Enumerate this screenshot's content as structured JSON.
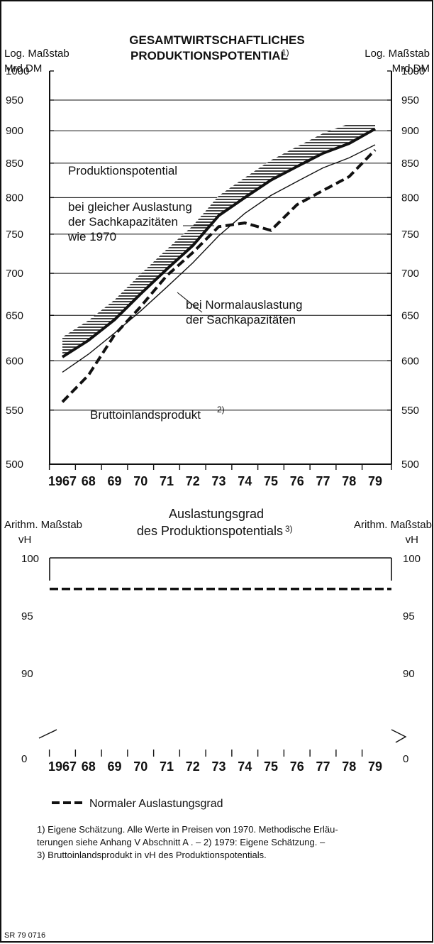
{
  "chart_data": [
    {
      "type": "line",
      "title": "GESAMTWIRTSCHAFTLICHES PRODUKTIONSPOTENTIAL",
      "title_line1": "GESAMTWIRTSCHAFTLICHES",
      "title_line2": "PRODUKTIONSPOTENTIAL",
      "title_footnote_mark": "1)",
      "yaxis_note_left_1": "Log. Maßstab",
      "yaxis_note_left_2": "Mrd DM",
      "yaxis_note_right_1": "Log. Maßstab",
      "yaxis_note_right_2": "Mrd DM",
      "yscale": "log",
      "ylim": [
        500,
        1000
      ],
      "yticks": [
        "1000",
        "950",
        "900",
        "850",
        "800",
        "750",
        "700",
        "650",
        "600",
        "550",
        "500"
      ],
      "ytick_values": [
        1000,
        950,
        900,
        850,
        800,
        750,
        700,
        650,
        600,
        550,
        500
      ],
      "grid": "horizontal",
      "x": [
        1967,
        1968,
        1969,
        1970,
        1971,
        1972,
        1973,
        1974,
        1975,
        1976,
        1977,
        1978,
        1979
      ],
      "xtick_labels": [
        "1967",
        "68",
        "69",
        "70",
        "71",
        "72",
        "73",
        "74",
        "75",
        "76",
        "77",
        "78",
        "79"
      ],
      "series": [
        {
          "key": "potential_1970",
          "values": [
            604,
            622,
            645,
            675,
            705,
            735,
            775,
            800,
            825,
            845,
            865,
            880,
            903
          ],
          "style": "thick-solid-hatched"
        },
        {
          "key": "potential_normal",
          "values": [
            588,
            607,
            630,
            655,
            683,
            713,
            748,
            778,
            803,
            823,
            843,
            858,
            878
          ],
          "style": "thin-solid"
        },
        {
          "key": "bip",
          "values": [
            558,
            585,
            628,
            660,
            697,
            726,
            760,
            765,
            755,
            790,
            810,
            830,
            870
          ],
          "style": "thick-dashed"
        }
      ],
      "annotations": {
        "produktionspotential": "Produktionspotential",
        "gleiche_1": "bei gleicher Auslastung",
        "gleiche_2": "der Sachkapazitäten",
        "gleiche_3": "wie 1970",
        "normal_1": "bei Normalauslastung",
        "normal_2": "der Sachkapazitäten",
        "bip": "Bruttoinlandsprodukt",
        "bip_mark": "2)"
      }
    },
    {
      "type": "line",
      "title": "Auslastungsgrad des Produktionspotentials",
      "title_line1": "Auslastungsgrad",
      "title_line2": "des Produktionspotentials",
      "title_footnote_mark": "3)",
      "yaxis_note_left_1": "Arithm. Maßstab",
      "yaxis_note_left_2": "vH",
      "yaxis_note_right_1": "Arithm. Maßstab",
      "yaxis_note_right_2": "vH",
      "yticks": [
        "100",
        "95",
        "90",
        "0"
      ],
      "ylim": [
        0,
        100
      ],
      "axis_break": true,
      "x": [
        1967,
        1968,
        1969,
        1970,
        1971,
        1972,
        1973,
        1974,
        1975,
        1976,
        1977,
        1978,
        1979
      ],
      "xtick_labels": [
        "1967",
        "68",
        "69",
        "70",
        "71",
        "72",
        "73",
        "74",
        "75",
        "76",
        "77",
        "78",
        "79"
      ],
      "series": [
        {
          "name": "Normaler Auslastungsgrad",
          "values": [
            97.3,
            97.3,
            97.3,
            97.3,
            97.3,
            97.3,
            97.3,
            97.3,
            97.3,
            97.3,
            97.3,
            97.3,
            97.3
          ],
          "style": "thick-dashed"
        }
      ],
      "legend": "bottom-left"
    }
  ],
  "footnotes": {
    "line1": "1) Eigene Schätzung. Alle Werte in Preisen von 1970. Methodische Erläu-",
    "line2": "terungen siehe Anhang V Abschnitt A . – 2) 1979: Eigene Schätzung. –",
    "line3": "3) Bruttoinlandsprodukt in vH des Produktionspotentials."
  },
  "source_code": "SR 79 0716"
}
